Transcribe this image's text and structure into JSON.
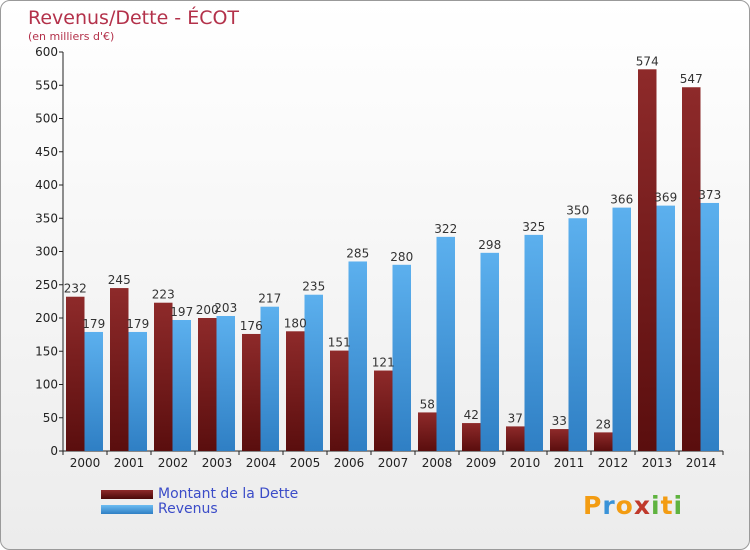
{
  "chart_data": {
    "type": "bar",
    "title": "Revenus/Dette - ÉCOT",
    "subtitle": "(en milliers d'€)",
    "categories": [
      "2000",
      "2001",
      "2002",
      "2003",
      "2004",
      "2005",
      "2006",
      "2007",
      "2008",
      "2009",
      "2010",
      "2011",
      "2012",
      "2013",
      "2014"
    ],
    "series": [
      {
        "name": "Montant de la Dette",
        "color": "#7a1d1d",
        "values": [
          232,
          245,
          223,
          200,
          176,
          180,
          151,
          121,
          58,
          42,
          37,
          33,
          28,
          574,
          547
        ],
        "labels": [
          "232",
          "245",
          "223",
          "200",
          "176",
          "180",
          "151",
          "121",
          "58",
          "42",
          "37",
          "33",
          "28",
          "574",
          "547"
        ]
      },
      {
        "name": "Revenus",
        "color": "#3a93d8",
        "values": [
          179,
          179,
          197,
          203,
          217,
          235,
          285,
          280,
          322,
          298,
          325,
          350,
          366,
          369,
          373
        ],
        "labels": [
          "179",
          "179",
          "197",
          "203",
          "217",
          "235",
          "285",
          "280",
          "322",
          "298",
          "325",
          "350",
          "366",
          "369",
          "373"
        ]
      }
    ],
    "ylim": [
      0,
      600
    ],
    "yticks": [
      0,
      50,
      100,
      150,
      200,
      250,
      300,
      350,
      400,
      450,
      500,
      550,
      600
    ],
    "grid": false,
    "legend": "bottom-left"
  },
  "logo": {
    "text": "Proxiti",
    "letters": [
      "P",
      "r",
      "o",
      "x",
      "i",
      "t",
      "i"
    ],
    "colors": [
      "#f39c12",
      "#3a93d8",
      "#f39c12",
      "#c0392b",
      "#5fb33f",
      "#f39c12",
      "#5fb33f"
    ]
  }
}
